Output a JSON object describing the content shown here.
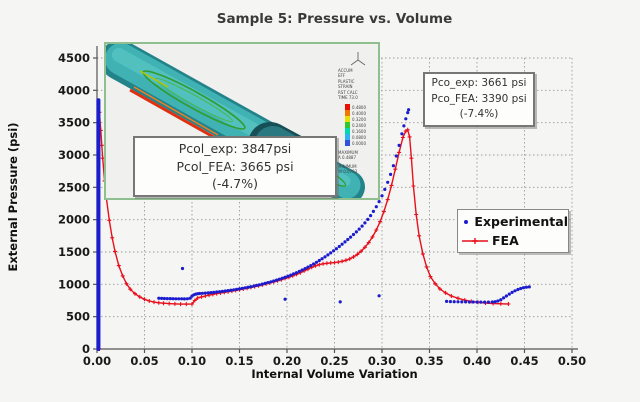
{
  "title": "Sample 5: Pressure vs. Volume",
  "axes": {
    "x": {
      "label": "Internal Volume Variation",
      "ticks": [
        0,
        0.05,
        0.1,
        0.15,
        0.2,
        0.25,
        0.3,
        0.35,
        0.4,
        0.45,
        0.5
      ],
      "tick_labels": [
        "0.00",
        "0.05",
        "0.10",
        "0.15",
        "0.20",
        "0.25",
        "0.30",
        "0.35",
        "0.40",
        "0.45",
        "0.50"
      ]
    },
    "y": {
      "label": "External Pressure (psi)",
      "ticks": [
        0,
        500,
        1000,
        1500,
        2000,
        2500,
        3000,
        3500,
        4000,
        4500
      ],
      "tick_labels": [
        "0",
        "500",
        "1000",
        "1500",
        "2000",
        "2500",
        "3000",
        "3500",
        "4000",
        "4500"
      ]
    }
  },
  "legend": {
    "items": [
      {
        "label": "Experimental",
        "marker": "dot",
        "color": "#1c1ccf"
      },
      {
        "label": "FEA",
        "marker": "line-cross",
        "color": "#e8101c"
      }
    ]
  },
  "annotations": {
    "pcol_text": "Pcol_exp:  3847psi\nPcol_FEA:  3665 psi\n(-4.7%)",
    "pco_text": "Pco_exp:  3661 psi\nPco_FEA: 3390 psi\n(-7.4%)"
  },
  "inset": {
    "colorbar_header": "ACCUM\nEFF\nPLASTIC\nSTRAIN\nRST CALC\nTIME 73.0",
    "colorbar_values": [
      "0.4800",
      "0.4000",
      "0.3200",
      "0.2400",
      "0.1600",
      "0.0800",
      "0.0000"
    ],
    "colorbar_colors": [
      "#e81000",
      "#f07800",
      "#e8e000",
      "#30c830",
      "#00d8b0",
      "#30b0f0",
      "#3050e0"
    ],
    "max_text": "MAXIMUM\nA 0.4887",
    "min_text": "MINIMUM\nW 0.0793"
  },
  "chart_data": {
    "type": "line",
    "title": "Sample 5: Pressure vs. Volume",
    "xlabel": "Internal Volume Variation",
    "ylabel": "External Pressure (psi)",
    "xlim": [
      0,
      0.5
    ],
    "ylim": [
      0,
      4500
    ],
    "grid": true,
    "legend_position": "right",
    "key_values": {
      "Pcol_exp_psi": 3847,
      "Pcol_FEA_psi": 3665,
      "Pcol_diff_pct": -4.7,
      "Pco_exp_psi": 3661,
      "Pco_FEA_psi": 3390,
      "Pco_diff_pct": -7.4
    },
    "series": [
      {
        "name": "FEA",
        "type": "line",
        "color": "#e8101c",
        "marker": "cross",
        "pts": [
          [
            0.0025,
            0
          ],
          [
            0.0025,
            3660
          ],
          [
            0.004,
            3380
          ],
          [
            0.005,
            3150
          ],
          [
            0.006,
            2950
          ],
          [
            0.008,
            2600
          ],
          [
            0.01,
            2320
          ],
          [
            0.013,
            1990
          ],
          [
            0.016,
            1720
          ],
          [
            0.019,
            1510
          ],
          [
            0.023,
            1290
          ],
          [
            0.027,
            1130
          ],
          [
            0.031,
            1010
          ],
          [
            0.035,
            925
          ],
          [
            0.04,
            855
          ],
          [
            0.045,
            805
          ],
          [
            0.05,
            768
          ],
          [
            0.055,
            742
          ],
          [
            0.06,
            726
          ],
          [
            0.065,
            715
          ],
          [
            0.07,
            708
          ],
          [
            0.076,
            702
          ],
          [
            0.082,
            698
          ],
          [
            0.088,
            695
          ],
          [
            0.094,
            694
          ],
          [
            0.1,
            696
          ],
          [
            0.103,
            750
          ],
          [
            0.106,
            788
          ],
          [
            0.11,
            806
          ],
          [
            0.114,
            820
          ],
          [
            0.118,
            833
          ],
          [
            0.122,
            845
          ],
          [
            0.126,
            856
          ],
          [
            0.13,
            866
          ],
          [
            0.134,
            876
          ],
          [
            0.138,
            886
          ],
          [
            0.142,
            896
          ],
          [
            0.146,
            906
          ],
          [
            0.15,
            917
          ],
          [
            0.154,
            928
          ],
          [
            0.158,
            940
          ],
          [
            0.162,
            952
          ],
          [
            0.166,
            965
          ],
          [
            0.17,
            978
          ],
          [
            0.174,
            992
          ],
          [
            0.178,
            1006
          ],
          [
            0.182,
            1021
          ],
          [
            0.186,
            1037
          ],
          [
            0.19,
            1054
          ],
          [
            0.194,
            1072
          ],
          [
            0.198,
            1091
          ],
          [
            0.202,
            1111
          ],
          [
            0.206,
            1132
          ],
          [
            0.21,
            1155
          ],
          [
            0.214,
            1180
          ],
          [
            0.218,
            1207
          ],
          [
            0.222,
            1236
          ],
          [
            0.226,
            1263
          ],
          [
            0.23,
            1287
          ],
          [
            0.234,
            1305
          ],
          [
            0.238,
            1318
          ],
          [
            0.242,
            1326
          ],
          [
            0.246,
            1331
          ],
          [
            0.25,
            1336
          ],
          [
            0.254,
            1344
          ],
          [
            0.258,
            1356
          ],
          [
            0.262,
            1372
          ],
          [
            0.266,
            1394
          ],
          [
            0.27,
            1424
          ],
          [
            0.274,
            1463
          ],
          [
            0.278,
            1512
          ],
          [
            0.282,
            1572
          ],
          [
            0.286,
            1645
          ],
          [
            0.29,
            1733
          ],
          [
            0.294,
            1840
          ],
          [
            0.298,
            1970
          ],
          [
            0.302,
            2125
          ],
          [
            0.306,
            2310
          ],
          [
            0.31,
            2530
          ],
          [
            0.314,
            2780
          ],
          [
            0.318,
            3040
          ],
          [
            0.322,
            3270
          ],
          [
            0.325,
            3370
          ],
          [
            0.327,
            3390
          ],
          [
            0.329,
            3280
          ],
          [
            0.331,
            2950
          ],
          [
            0.333,
            2520
          ],
          [
            0.336,
            2080
          ],
          [
            0.339,
            1750
          ],
          [
            0.343,
            1470
          ],
          [
            0.347,
            1270
          ],
          [
            0.351,
            1120
          ],
          [
            0.356,
            1010
          ],
          [
            0.361,
            930
          ],
          [
            0.367,
            868
          ],
          [
            0.373,
            820
          ],
          [
            0.38,
            784
          ],
          [
            0.387,
            756
          ],
          [
            0.394,
            736
          ],
          [
            0.401,
            722
          ],
          [
            0.409,
            712
          ],
          [
            0.417,
            704
          ],
          [
            0.425,
            699
          ],
          [
            0.433,
            696
          ]
        ]
      },
      {
        "name": "Experimental",
        "type": "scatter",
        "color": "#1c1ccf",
        "segments": [
          {
            "type": "vline",
            "x": 0.0015,
            "y0": 0,
            "y1": 3847
          },
          {
            "type": "points",
            "name": "pre-collapse",
            "pts": [
              [
                0.065,
                786
              ],
              [
                0.068,
                783
              ],
              [
                0.071,
                781
              ],
              [
                0.074,
                780
              ],
              [
                0.077,
                779
              ],
              [
                0.08,
                778
              ],
              [
                0.083,
                777
              ],
              [
                0.086,
                776
              ],
              [
                0.089,
                776
              ],
              [
                0.092,
                775
              ],
              [
                0.095,
                776
              ],
              [
                0.098,
                786
              ],
              [
                0.1,
                818
              ],
              [
                0.102,
                838
              ],
              [
                0.104,
                849
              ],
              [
                0.106,
                855
              ],
              [
                0.108,
                859
              ],
              [
                0.111,
                862
              ],
              [
                0.114,
                865
              ],
              [
                0.117,
                868
              ],
              [
                0.12,
                872
              ],
              [
                0.123,
                876
              ],
              [
                0.126,
                881
              ],
              [
                0.129,
                886
              ],
              [
                0.132,
                891
              ],
              [
                0.135,
                897
              ],
              [
                0.138,
                903
              ],
              [
                0.141,
                909
              ],
              [
                0.144,
                916
              ],
              [
                0.147,
                923
              ],
              [
                0.15,
                930
              ],
              [
                0.153,
                938
              ],
              [
                0.156,
                946
              ],
              [
                0.159,
                955
              ],
              [
                0.162,
                964
              ],
              [
                0.165,
                973
              ],
              [
                0.168,
                983
              ],
              [
                0.171,
                993
              ],
              [
                0.174,
                1004
              ],
              [
                0.177,
                1015
              ],
              [
                0.18,
                1027
              ],
              [
                0.183,
                1039
              ],
              [
                0.186,
                1052
              ],
              [
                0.189,
                1066
              ],
              [
                0.192,
                1080
              ],
              [
                0.195,
                1095
              ],
              [
                0.198,
                1110
              ],
              [
                0.201,
                1126
              ],
              [
                0.204,
                1143
              ],
              [
                0.207,
                1161
              ],
              [
                0.21,
                1180
              ],
              [
                0.213,
                1200
              ],
              [
                0.216,
                1221
              ],
              [
                0.219,
                1243
              ],
              [
                0.222,
                1266
              ],
              [
                0.225,
                1290
              ],
              [
                0.228,
                1315
              ],
              [
                0.231,
                1341
              ],
              [
                0.234,
                1368
              ],
              [
                0.237,
                1396
              ],
              [
                0.24,
                1425
              ],
              [
                0.243,
                1455
              ],
              [
                0.246,
                1486
              ],
              [
                0.249,
                1518
              ],
              [
                0.252,
                1551
              ],
              [
                0.255,
                1585
              ],
              [
                0.258,
                1620
              ],
              [
                0.261,
                1656
              ],
              [
                0.264,
                1693
              ],
              [
                0.267,
                1731
              ],
              [
                0.27,
                1770
              ],
              [
                0.273,
                1811
              ],
              [
                0.276,
                1854
              ],
              [
                0.279,
                1900
              ],
              [
                0.282,
                1950
              ],
              [
                0.285,
                2004
              ],
              [
                0.288,
                2063
              ],
              [
                0.291,
                2128
              ],
              [
                0.294,
                2200
              ],
              [
                0.297,
                2280
              ],
              [
                0.3,
                2369
              ],
              [
                0.303,
                2468
              ],
              [
                0.306,
                2578
              ],
              [
                0.309,
                2700
              ],
              [
                0.312,
                2835
              ],
              [
                0.315,
                2984
              ],
              [
                0.318,
                3148
              ],
              [
                0.321,
                3328
              ],
              [
                0.323,
                3450
              ],
              [
                0.325,
                3560
              ],
              [
                0.327,
                3655
              ],
              [
                0.328,
                3700
              ]
            ]
          },
          {
            "type": "points",
            "name": "post-collapse",
            "pts": [
              [
                0.368,
                736
              ],
              [
                0.372,
                733
              ],
              [
                0.376,
                731
              ],
              [
                0.38,
                730
              ],
              [
                0.384,
                729
              ],
              [
                0.388,
                728
              ],
              [
                0.392,
                727
              ],
              [
                0.396,
                727
              ],
              [
                0.4,
                726
              ],
              [
                0.404,
                726
              ],
              [
                0.408,
                726
              ],
              [
                0.412,
                726
              ],
              [
                0.416,
                727
              ],
              [
                0.419,
                731
              ],
              [
                0.422,
                742
              ],
              [
                0.425,
                762
              ],
              [
                0.428,
                790
              ],
              [
                0.431,
                820
              ],
              [
                0.434,
                849
              ],
              [
                0.437,
                876
              ],
              [
                0.44,
                900
              ],
              [
                0.443,
                920
              ],
              [
                0.446,
                936
              ],
              [
                0.449,
                948
              ],
              [
                0.452,
                956
              ],
              [
                0.455,
                961
              ]
            ]
          },
          {
            "type": "points",
            "name": "outliers",
            "pts": [
              [
                0.09,
                1245
              ],
              [
                0.198,
                770
              ],
              [
                0.256,
                728
              ],
              [
                0.297,
                822
              ]
            ]
          }
        ]
      }
    ]
  }
}
